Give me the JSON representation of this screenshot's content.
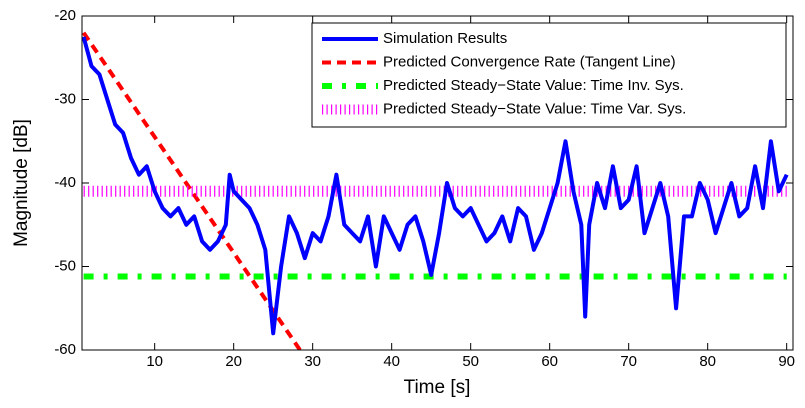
{
  "chart_data": {
    "type": "line",
    "xlabel": "Time [s]",
    "ylabel": "Magnitude [dB]",
    "xlim": [
      0.8,
      90.8
    ],
    "ylim": [
      -60,
      -20
    ],
    "xticks": [
      10,
      20,
      30,
      40,
      50,
      60,
      70,
      80,
      90
    ],
    "yticks": [
      -60,
      -50,
      -40,
      -30,
      -20
    ],
    "grid": false,
    "legend": "upper right",
    "series": [
      {
        "name": "Simulation Results",
        "color": "#0000ff",
        "style": "solid",
        "x": [
          1,
          2,
          3,
          4,
          5,
          6,
          7,
          8,
          9,
          10,
          11,
          12,
          13,
          14,
          15,
          16,
          17,
          18,
          19,
          19.5,
          20,
          21,
          22,
          23,
          24,
          25,
          26,
          27,
          28,
          29,
          30,
          31,
          32,
          33,
          34,
          35,
          36,
          37,
          38,
          39,
          40,
          41,
          42,
          43,
          44,
          45,
          46,
          47,
          48,
          49,
          50,
          51,
          52,
          53,
          54,
          55,
          56,
          57,
          58,
          59,
          60,
          61,
          62,
          63,
          64,
          64.5,
          65,
          66,
          67,
          68,
          69,
          70,
          71,
          72,
          73,
          74,
          75,
          76,
          77,
          78,
          79,
          80,
          81,
          82,
          83,
          84,
          85,
          86,
          87,
          88,
          89,
          90
        ],
        "values": [
          -22.5,
          -26,
          -27,
          -30,
          -33,
          -34,
          -37,
          -39,
          -38,
          -41,
          -43,
          -44,
          -43,
          -45,
          -44,
          -47,
          -48,
          -47,
          -45,
          -39,
          -41,
          -42,
          -43,
          -45,
          -48,
          -58,
          -50,
          -44,
          -46,
          -49,
          -46,
          -47,
          -44,
          -39,
          -45,
          -46,
          -47,
          -44,
          -50,
          -44,
          -46,
          -48,
          -45,
          -44,
          -47,
          -51,
          -46,
          -40,
          -43,
          -44,
          -43,
          -45,
          -47,
          -46,
          -44,
          -47,
          -43,
          -44,
          -48,
          -46,
          -43,
          -40,
          -35,
          -41,
          -45,
          -56,
          -45,
          -40,
          -43,
          -38,
          -43,
          -42,
          -38,
          -46,
          -43,
          -40,
          -44,
          -55,
          -44,
          -44,
          -40,
          -42,
          -46,
          -43,
          -40,
          -44,
          -43,
          -38,
          -43,
          -35,
          -41,
          -39
        ]
      },
      {
        "name": "Predicted Convergence Rate (Tangent Line)",
        "color": "#ff0000",
        "style": "dashed",
        "x": [
          1,
          28.4
        ],
        "values": [
          -22,
          -60
        ]
      },
      {
        "name": "Predicted Steady−State Value: Time Inv. Sys.",
        "color": "#00ff00",
        "style": "dashdot",
        "x": [
          1,
          90
        ],
        "values": [
          -51.2,
          -51.2
        ]
      },
      {
        "name": "Predicted Steady−State Value: Time Var. Sys.",
        "color": "#ff00ff",
        "style": "dotted",
        "x": [
          1,
          90
        ],
        "values": [
          -41,
          -41
        ]
      }
    ]
  }
}
